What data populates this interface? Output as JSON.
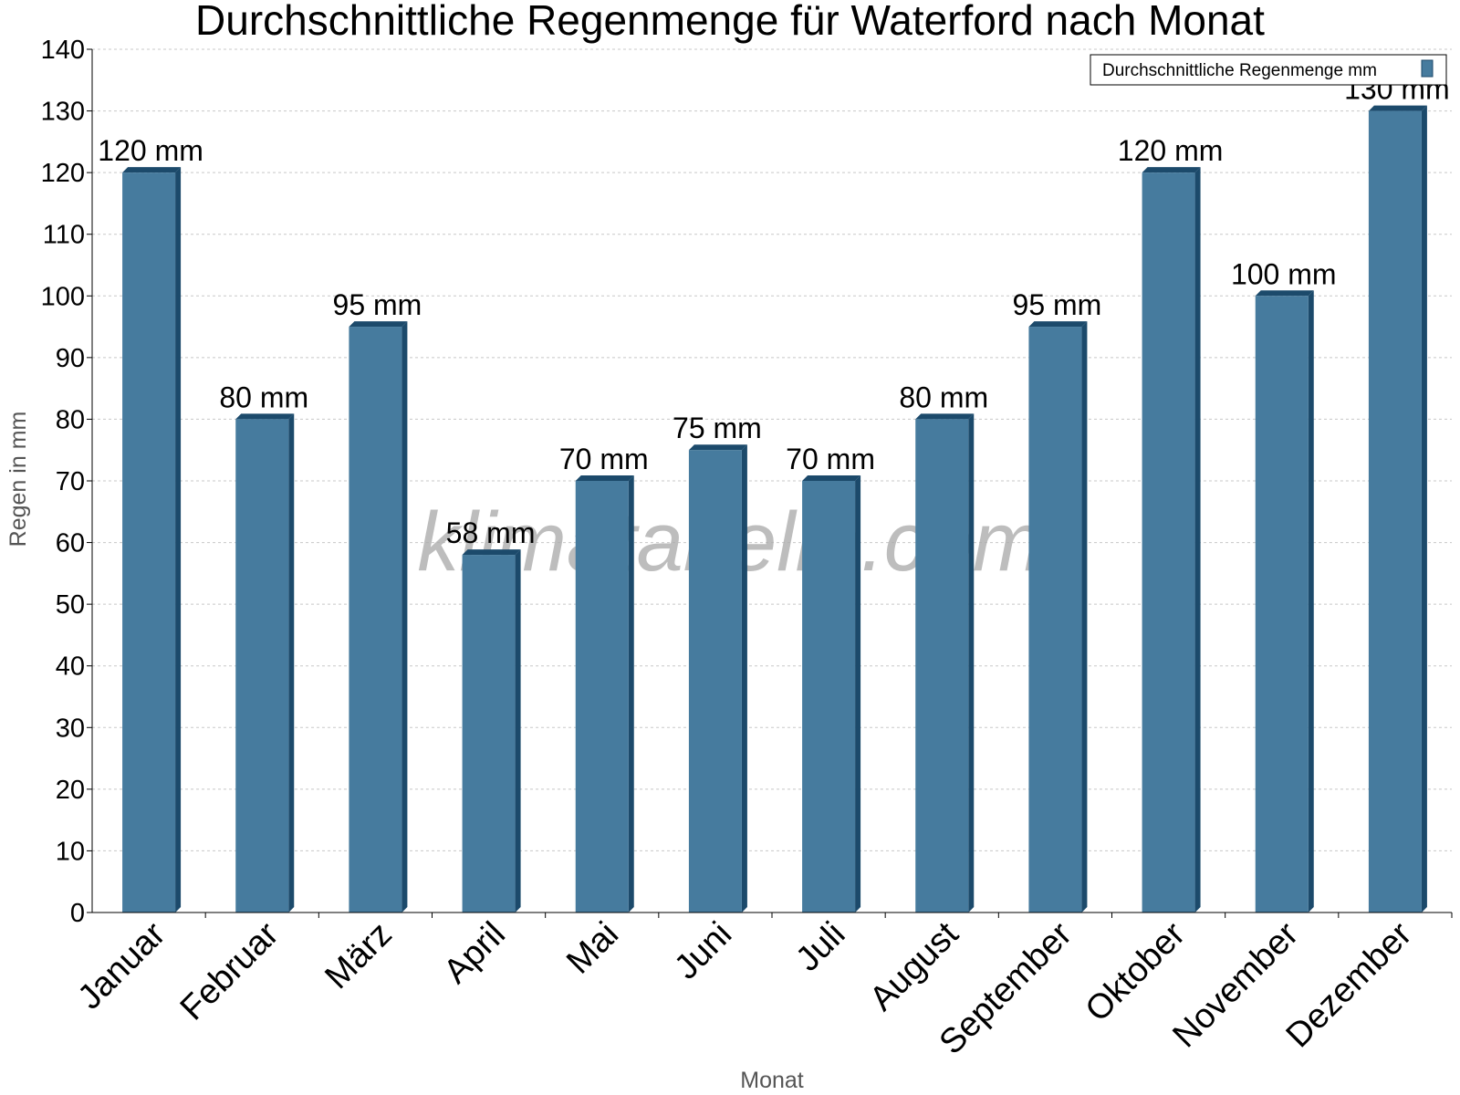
{
  "chart_data": {
    "type": "bar",
    "title": "Durchschnittliche Regenmenge für Waterford nach Monat",
    "xlabel": "Monat",
    "ylabel": "Regen in mm",
    "ylim": [
      0,
      140
    ],
    "ytick_step": 10,
    "categories": [
      "Januar",
      "Februar",
      "März",
      "April",
      "Mai",
      "Juni",
      "Juli",
      "August",
      "September",
      "Oktober",
      "November",
      "Dezember"
    ],
    "series": [
      {
        "name": "Durchschnittliche Regenmenge mm",
        "values": [
          120,
          80,
          95,
          58,
          70,
          75,
          70,
          80,
          95,
          120,
          100,
          130
        ],
        "labels": [
          "120 mm",
          "80 mm",
          "95 mm",
          "58 mm",
          "70 mm",
          "75 mm",
          "70 mm",
          "80 mm",
          "95 mm",
          "120 mm",
          "100 mm",
          "130 mm"
        ],
        "color": "#467b9e",
        "side_color": "#1c4a6b"
      }
    ],
    "legend": {
      "position": "top-right",
      "label": "Durchschnittliche Regenmenge mm"
    },
    "grid": true,
    "watermark": "klimatabelle.com"
  }
}
